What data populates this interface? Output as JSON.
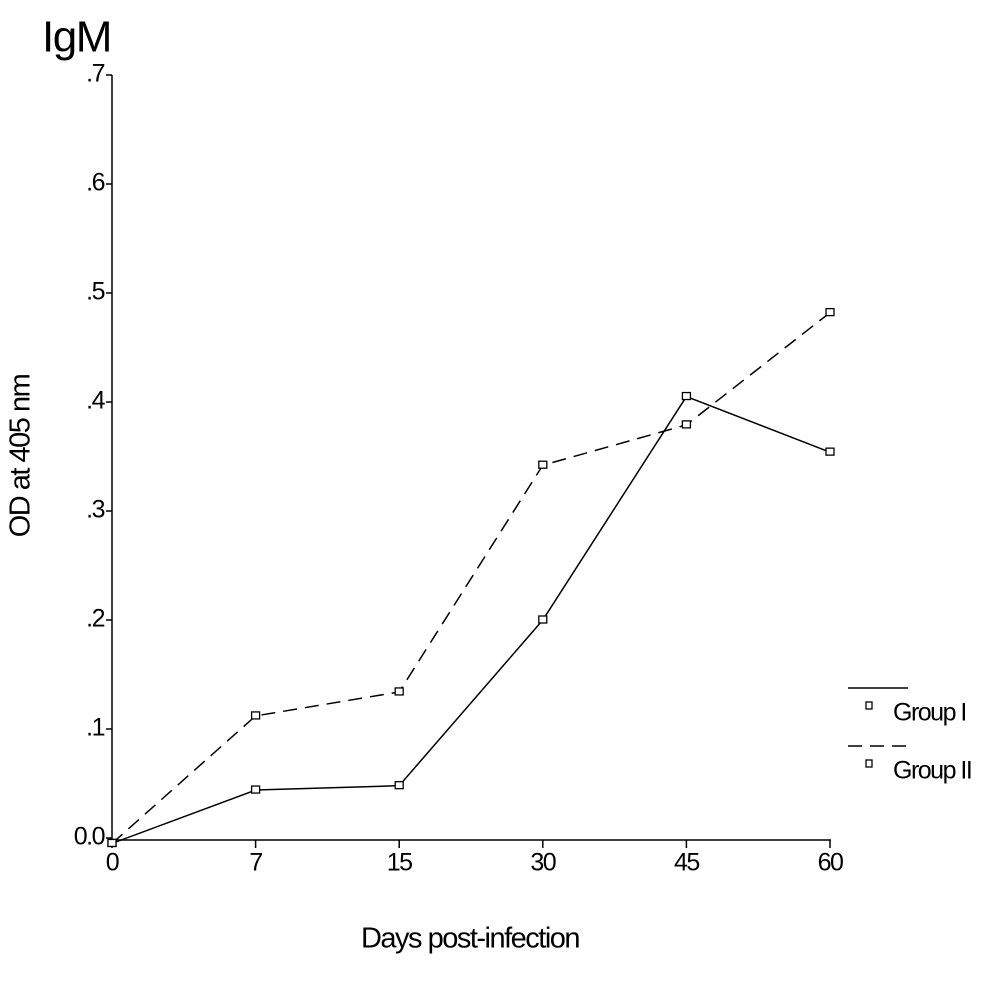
{
  "chart_data": {
    "type": "line",
    "title": "IgM",
    "x_label": "Days post-infection",
    "y_label": "OD at 405 nm",
    "categories": [
      "0",
      "7",
      "15",
      "30",
      "45",
      "60"
    ],
    "series": [
      {
        "name": "Group I",
        "color": "#000000",
        "dash": "solid",
        "values": [
          -0.005,
          0.044,
          0.048,
          0.2,
          0.405,
          0.354
        ]
      },
      {
        "name": "Group II",
        "color": "#000000",
        "dash": "dashed",
        "values": [
          -0.005,
          0.112,
          0.134,
          0.342,
          0.379,
          0.482
        ]
      }
    ],
    "ylim": [
      0,
      0.7
    ],
    "yticks": [
      {
        "value": 0,
        "label": "0.0"
      },
      {
        "value": 0.1,
        "label": ".1"
      },
      {
        "value": 0.2,
        "label": ".2"
      },
      {
        "value": 0.3,
        "label": ".3"
      },
      {
        "value": 0.4,
        "label": ".4"
      },
      {
        "value": 0.5,
        "label": ".5"
      },
      {
        "value": 0.6,
        "label": ".6"
      },
      {
        "value": 0.7,
        "label": ".7"
      }
    ],
    "legend": "right",
    "grid": false
  }
}
